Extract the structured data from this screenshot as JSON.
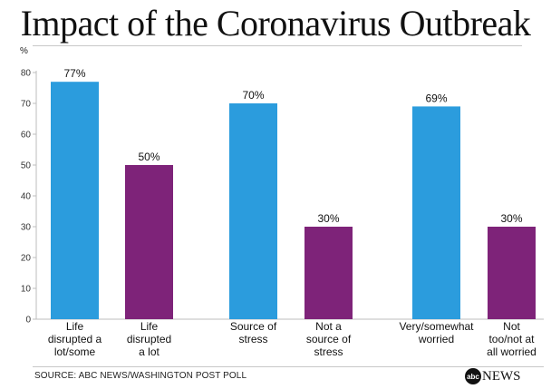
{
  "title": "Impact of the Coronavirus Outbreak",
  "unit_label": "%",
  "source": "SOURCE: ABC NEWS/WASHINGTON POST POLL",
  "logo": {
    "disc": "abc",
    "text": "NEWS"
  },
  "colors": {
    "blue": "#2B9CDD",
    "purple": "#7E2379"
  },
  "chart_data": {
    "type": "bar",
    "title": "Impact of the Coronavirus Outbreak",
    "ylabel": "%",
    "ylim": [
      0,
      80
    ],
    "yticks": [
      0,
      10,
      20,
      30,
      40,
      50,
      60,
      70,
      80
    ],
    "grid": false,
    "bars": [
      {
        "label": [
          "Life",
          "disrupted a",
          "lot/some"
        ],
        "value": 77,
        "data_label": "77%",
        "color": "blue"
      },
      {
        "label": [
          "Life",
          "disrupted",
          "a lot"
        ],
        "value": 50,
        "data_label": "50%",
        "color": "purple"
      },
      {
        "label": [
          "Source of",
          "stress"
        ],
        "value": 70,
        "data_label": "70%",
        "color": "blue"
      },
      {
        "label": [
          "Not a",
          "source of",
          "stress"
        ],
        "value": 30,
        "data_label": "30%",
        "color": "purple"
      },
      {
        "label": [
          "Very/somewhat",
          "worried"
        ],
        "value": 69,
        "data_label": "69%",
        "color": "blue"
      },
      {
        "label": [
          "Not",
          "too/not at",
          "all worried"
        ],
        "value": 30,
        "data_label": "30%",
        "color": "purple"
      }
    ]
  }
}
